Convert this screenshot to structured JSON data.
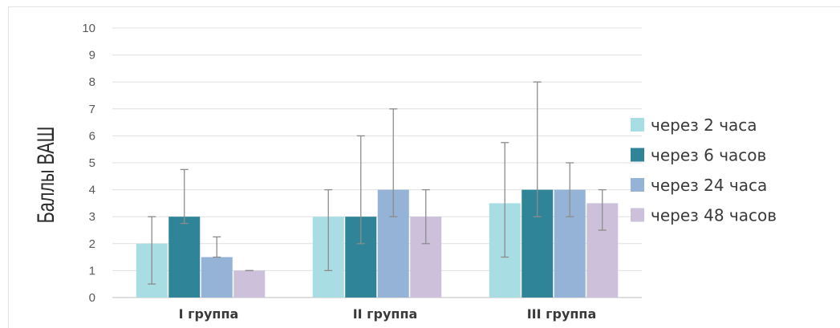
{
  "chart_data": {
    "type": "bar",
    "ylabel": "Баллы ВАШ",
    "xlabel": "",
    "title": "",
    "ylim": [
      0,
      10
    ],
    "yticks": [
      "0",
      "1",
      "2",
      "3",
      "4",
      "5",
      "6",
      "7",
      "8",
      "9",
      "10"
    ],
    "grid": true,
    "legend_position": "right",
    "categories": [
      "I группа",
      "II группа",
      "III группа"
    ],
    "series": [
      {
        "name": "через 2 часа",
        "color": "#a9dde4",
        "values": [
          2,
          3,
          3.5
        ],
        "err_low": [
          0.5,
          1,
          1.5
        ],
        "err_high": [
          3,
          4,
          5.75
        ]
      },
      {
        "name": "через 6 часов",
        "color": "#2f8597",
        "values": [
          3,
          3,
          4
        ],
        "err_low": [
          2.75,
          2,
          3
        ],
        "err_high": [
          4.75,
          6,
          8
        ]
      },
      {
        "name": "через 24 часа",
        "color": "#95b3d7",
        "values": [
          1.5,
          4,
          4
        ],
        "err_low": [
          1.5,
          3,
          3
        ],
        "err_high": [
          2.25,
          7,
          5
        ]
      },
      {
        "name": "через 48 часов",
        "color": "#ccc0da",
        "values": [
          1,
          3,
          3.5
        ],
        "err_low": [
          1,
          2,
          2.5
        ],
        "err_high": [
          1,
          4,
          4
        ]
      }
    ]
  }
}
